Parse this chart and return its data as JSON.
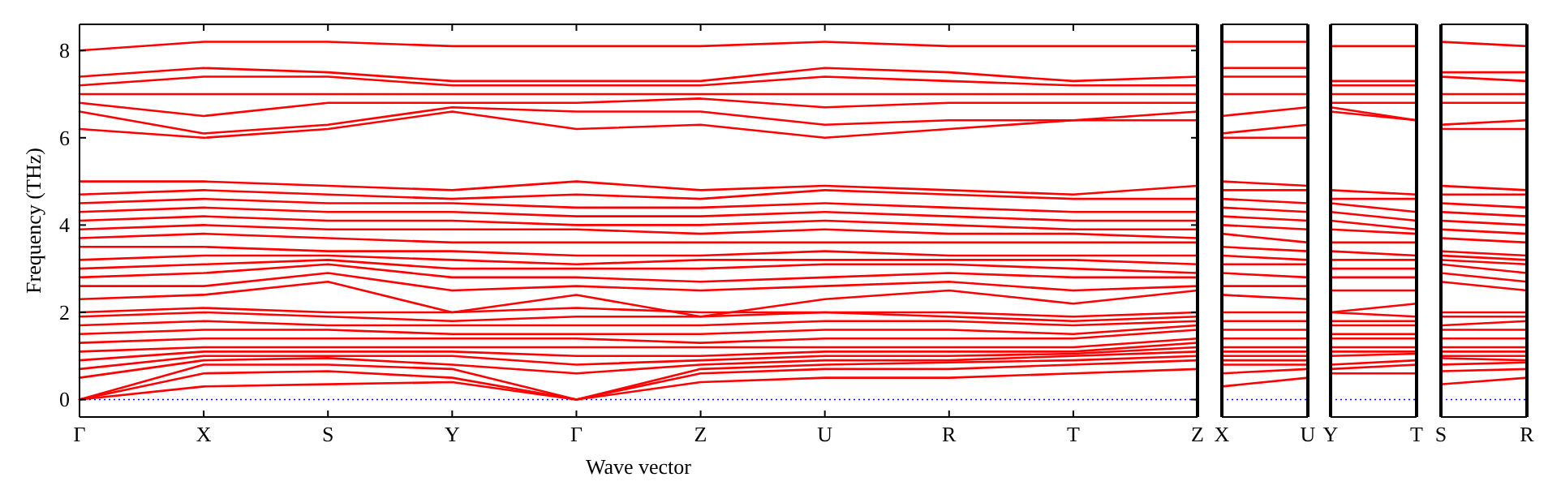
{
  "chart_data": [
    {
      "type": "line",
      "xlabel": "Wave vector",
      "ylabel": "Frequency (THz)",
      "categories": [
        "Γ",
        "X",
        "S",
        "Y",
        "Γ",
        "Z",
        "U",
        "R",
        "T",
        "Z"
      ],
      "ylim": [
        -0.4,
        8.6
      ],
      "yticks": [
        0,
        2,
        4,
        6,
        8
      ],
      "ref_lines": [
        {
          "axis": "y",
          "value": 0,
          "color": "#0000ff",
          "line_style": "dotted"
        }
      ],
      "series": [
        {
          "color": "#ff0000",
          "values": [
            0,
            0.3,
            0.35,
            0.4,
            0,
            0.4,
            0.5,
            0.5,
            0.6,
            0.7
          ]
        },
        {
          "color": "#ff0000",
          "values": [
            0,
            0.6,
            0.65,
            0.5,
            0,
            0.6,
            0.7,
            0.7,
            0.8,
            0.9
          ]
        },
        {
          "color": "#ff0000",
          "values": [
            0,
            0.8,
            0.8,
            0.7,
            0,
            0.7,
            0.8,
            0.85,
            0.9,
            1.0
          ]
        },
        {
          "color": "#ff0000",
          "values": [
            0.5,
            0.9,
            0.95,
            0.8,
            0.6,
            0.8,
            0.9,
            0.9,
            1.0,
            1.1
          ]
        },
        {
          "color": "#ff0000",
          "values": [
            0.7,
            1.0,
            1.0,
            1.0,
            0.8,
            0.9,
            1.0,
            1.0,
            1.05,
            1.2
          ]
        },
        {
          "color": "#ff0000",
          "values": [
            0.9,
            1.1,
            1.1,
            1.1,
            1.0,
            1.0,
            1.1,
            1.1,
            1.1,
            1.3
          ]
        },
        {
          "color": "#ff0000",
          "values": [
            1.1,
            1.2,
            1.2,
            1.2,
            1.2,
            1.2,
            1.2,
            1.2,
            1.2,
            1.4
          ]
        },
        {
          "color": "#ff0000",
          "values": [
            1.3,
            1.4,
            1.4,
            1.4,
            1.4,
            1.3,
            1.4,
            1.4,
            1.4,
            1.6
          ]
        },
        {
          "color": "#ff0000",
          "values": [
            1.5,
            1.6,
            1.6,
            1.5,
            1.5,
            1.5,
            1.6,
            1.6,
            1.5,
            1.7
          ]
        },
        {
          "color": "#ff0000",
          "values": [
            1.7,
            1.8,
            1.7,
            1.7,
            1.7,
            1.7,
            1.8,
            1.8,
            1.7,
            1.8
          ]
        },
        {
          "color": "#ff0000",
          "values": [
            1.9,
            2.0,
            1.9,
            1.8,
            1.9,
            1.9,
            2.0,
            1.9,
            1.8,
            1.9
          ]
        },
        {
          "color": "#ff0000",
          "values": [
            2.0,
            2.1,
            2.0,
            2.0,
            2.1,
            2.0,
            2.0,
            2.0,
            1.9,
            2.0
          ]
        },
        {
          "color": "#ff0000",
          "values": [
            2.3,
            2.4,
            2.7,
            2.0,
            2.4,
            1.9,
            2.3,
            2.5,
            2.2,
            2.5
          ]
        },
        {
          "color": "#ff0000",
          "values": [
            2.6,
            2.6,
            2.9,
            2.5,
            2.6,
            2.5,
            2.6,
            2.7,
            2.5,
            2.6
          ]
        },
        {
          "color": "#ff0000",
          "values": [
            2.8,
            2.9,
            3.1,
            2.8,
            2.8,
            2.7,
            2.8,
            2.9,
            2.8,
            2.8
          ]
        },
        {
          "color": "#ff0000",
          "values": [
            3.0,
            3.1,
            3.2,
            3.0,
            3.0,
            3.0,
            3.1,
            3.1,
            3.0,
            2.9
          ]
        },
        {
          "color": "#ff0000",
          "values": [
            3.2,
            3.3,
            3.3,
            3.2,
            3.1,
            3.2,
            3.2,
            3.2,
            3.2,
            3.1
          ]
        },
        {
          "color": "#ff0000",
          "values": [
            3.5,
            3.5,
            3.4,
            3.4,
            3.3,
            3.3,
            3.4,
            3.3,
            3.3,
            3.3
          ]
        },
        {
          "color": "#ff0000",
          "values": [
            3.7,
            3.8,
            3.7,
            3.6,
            3.6,
            3.6,
            3.6,
            3.6,
            3.6,
            3.6
          ]
        },
        {
          "color": "#ff0000",
          "values": [
            3.9,
            4.0,
            3.9,
            3.9,
            3.9,
            3.8,
            3.9,
            3.8,
            3.8,
            3.7
          ]
        },
        {
          "color": "#ff0000",
          "values": [
            4.1,
            4.2,
            4.1,
            4.1,
            4.0,
            4.0,
            4.1,
            4.0,
            3.9,
            3.9
          ]
        },
        {
          "color": "#ff0000",
          "values": [
            4.3,
            4.4,
            4.3,
            4.3,
            4.2,
            4.2,
            4.3,
            4.2,
            4.1,
            4.1
          ]
        },
        {
          "color": "#ff0000",
          "values": [
            4.5,
            4.6,
            4.5,
            4.5,
            4.4,
            4.4,
            4.5,
            4.4,
            4.3,
            4.3
          ]
        },
        {
          "color": "#ff0000",
          "values": [
            4.7,
            4.8,
            4.7,
            4.6,
            4.7,
            4.6,
            4.8,
            4.7,
            4.6,
            4.6
          ]
        },
        {
          "color": "#ff0000",
          "values": [
            5.0,
            5.0,
            4.9,
            4.8,
            5.0,
            4.8,
            4.9,
            4.8,
            4.7,
            4.9
          ]
        },
        {
          "color": "#ff0000",
          "values": [
            6.2,
            6.0,
            6.2,
            6.6,
            6.2,
            6.3,
            6.0,
            6.2,
            6.4,
            6.4
          ]
        },
        {
          "color": "#ff0000",
          "values": [
            6.6,
            6.1,
            6.3,
            6.7,
            6.6,
            6.6,
            6.3,
            6.4,
            6.4,
            6.6
          ]
        },
        {
          "color": "#ff0000",
          "values": [
            6.8,
            6.5,
            6.8,
            6.8,
            6.8,
            6.9,
            6.7,
            6.8,
            6.8,
            6.8
          ]
        },
        {
          "color": "#ff0000",
          "values": [
            7.0,
            7.0,
            7.0,
            7.0,
            7.0,
            7.0,
            7.0,
            7.0,
            7.0,
            7.0
          ]
        },
        {
          "color": "#ff0000",
          "values": [
            7.2,
            7.4,
            7.4,
            7.2,
            7.2,
            7.2,
            7.4,
            7.3,
            7.2,
            7.2
          ]
        },
        {
          "color": "#ff0000",
          "values": [
            7.4,
            7.6,
            7.5,
            7.3,
            7.3,
            7.3,
            7.6,
            7.5,
            7.3,
            7.4
          ]
        },
        {
          "color": "#ff0000",
          "values": [
            8.0,
            8.2,
            8.2,
            8.1,
            8.1,
            8.1,
            8.2,
            8.1,
            8.1,
            8.1
          ]
        }
      ]
    },
    {
      "type": "line",
      "categories": [
        "X",
        "U"
      ],
      "ylim": [
        -0.4,
        8.6
      ],
      "tick_labels": "x",
      "ref_lines": [
        {
          "axis": "y",
          "value": 0,
          "color": "#0000ff",
          "line_style": "dotted"
        }
      ],
      "series": [
        {
          "color": "#ff0000",
          "values": [
            0.3,
            0.5
          ]
        },
        {
          "color": "#ff0000",
          "values": [
            0.6,
            0.7
          ]
        },
        {
          "color": "#ff0000",
          "values": [
            0.8,
            0.8
          ]
        },
        {
          "color": "#ff0000",
          "values": [
            0.9,
            0.9
          ]
        },
        {
          "color": "#ff0000",
          "values": [
            1.0,
            1.0
          ]
        },
        {
          "color": "#ff0000",
          "values": [
            1.1,
            1.1
          ]
        },
        {
          "color": "#ff0000",
          "values": [
            1.2,
            1.2
          ]
        },
        {
          "color": "#ff0000",
          "values": [
            1.4,
            1.4
          ]
        },
        {
          "color": "#ff0000",
          "values": [
            1.6,
            1.6
          ]
        },
        {
          "color": "#ff0000",
          "values": [
            1.8,
            1.8
          ]
        },
        {
          "color": "#ff0000",
          "values": [
            2.0,
            2.0
          ]
        },
        {
          "color": "#ff0000",
          "values": [
            2.4,
            2.3
          ]
        },
        {
          "color": "#ff0000",
          "values": [
            2.6,
            2.6
          ]
        },
        {
          "color": "#ff0000",
          "values": [
            2.9,
            2.8
          ]
        },
        {
          "color": "#ff0000",
          "values": [
            3.1,
            3.1
          ]
        },
        {
          "color": "#ff0000",
          "values": [
            3.3,
            3.2
          ]
        },
        {
          "color": "#ff0000",
          "values": [
            3.5,
            3.4
          ]
        },
        {
          "color": "#ff0000",
          "values": [
            3.8,
            3.6
          ]
        },
        {
          "color": "#ff0000",
          "values": [
            4.0,
            3.9
          ]
        },
        {
          "color": "#ff0000",
          "values": [
            4.2,
            4.1
          ]
        },
        {
          "color": "#ff0000",
          "values": [
            4.4,
            4.3
          ]
        },
        {
          "color": "#ff0000",
          "values": [
            4.6,
            4.5
          ]
        },
        {
          "color": "#ff0000",
          "values": [
            4.8,
            4.8
          ]
        },
        {
          "color": "#ff0000",
          "values": [
            5.0,
            4.9
          ]
        },
        {
          "color": "#ff0000",
          "values": [
            6.0,
            6.0
          ]
        },
        {
          "color": "#ff0000",
          "values": [
            6.1,
            6.3
          ]
        },
        {
          "color": "#ff0000",
          "values": [
            6.5,
            6.7
          ]
        },
        {
          "color": "#ff0000",
          "values": [
            7.0,
            7.0
          ]
        },
        {
          "color": "#ff0000",
          "values": [
            7.4,
            7.4
          ]
        },
        {
          "color": "#ff0000",
          "values": [
            7.6,
            7.6
          ]
        },
        {
          "color": "#ff0000",
          "values": [
            8.2,
            8.2
          ]
        }
      ]
    },
    {
      "type": "line",
      "categories": [
        "Y",
        "T"
      ],
      "ylim": [
        -0.4,
        8.6
      ],
      "tick_labels": "x",
      "ref_lines": [
        {
          "axis": "y",
          "value": 0,
          "color": "#0000ff",
          "line_style": "dotted"
        }
      ],
      "series": [
        {
          "color": "#ff0000",
          "values": [
            0.6,
            0.6
          ]
        },
        {
          "color": "#ff0000",
          "values": [
            0.7,
            0.8
          ]
        },
        {
          "color": "#ff0000",
          "values": [
            0.8,
            0.9
          ]
        },
        {
          "color": "#ff0000",
          "values": [
            1.0,
            1.05
          ]
        },
        {
          "color": "#ff0000",
          "values": [
            1.1,
            1.1
          ]
        },
        {
          "color": "#ff0000",
          "values": [
            1.2,
            1.2
          ]
        },
        {
          "color": "#ff0000",
          "values": [
            1.4,
            1.4
          ]
        },
        {
          "color": "#ff0000",
          "values": [
            1.5,
            1.5
          ]
        },
        {
          "color": "#ff0000",
          "values": [
            1.7,
            1.7
          ]
        },
        {
          "color": "#ff0000",
          "values": [
            1.8,
            1.8
          ]
        },
        {
          "color": "#ff0000",
          "values": [
            2.0,
            1.9
          ]
        },
        {
          "color": "#ff0000",
          "values": [
            2.0,
            2.2
          ]
        },
        {
          "color": "#ff0000",
          "values": [
            2.5,
            2.5
          ]
        },
        {
          "color": "#ff0000",
          "values": [
            2.8,
            2.8
          ]
        },
        {
          "color": "#ff0000",
          "values": [
            3.0,
            3.0
          ]
        },
        {
          "color": "#ff0000",
          "values": [
            3.2,
            3.2
          ]
        },
        {
          "color": "#ff0000",
          "values": [
            3.4,
            3.3
          ]
        },
        {
          "color": "#ff0000",
          "values": [
            3.6,
            3.6
          ]
        },
        {
          "color": "#ff0000",
          "values": [
            3.9,
            3.8
          ]
        },
        {
          "color": "#ff0000",
          "values": [
            4.1,
            3.9
          ]
        },
        {
          "color": "#ff0000",
          "values": [
            4.3,
            4.1
          ]
        },
        {
          "color": "#ff0000",
          "values": [
            4.5,
            4.3
          ]
        },
        {
          "color": "#ff0000",
          "values": [
            4.6,
            4.6
          ]
        },
        {
          "color": "#ff0000",
          "values": [
            4.8,
            4.7
          ]
        },
        {
          "color": "#ff0000",
          "values": [
            6.6,
            6.4
          ]
        },
        {
          "color": "#ff0000",
          "values": [
            6.7,
            6.4
          ]
        },
        {
          "color": "#ff0000",
          "values": [
            6.8,
            6.8
          ]
        },
        {
          "color": "#ff0000",
          "values": [
            7.0,
            7.0
          ]
        },
        {
          "color": "#ff0000",
          "values": [
            7.2,
            7.2
          ]
        },
        {
          "color": "#ff0000",
          "values": [
            7.3,
            7.3
          ]
        },
        {
          "color": "#ff0000",
          "values": [
            8.1,
            8.1
          ]
        }
      ]
    },
    {
      "type": "line",
      "categories": [
        "S",
        "R"
      ],
      "ylim": [
        -0.4,
        8.6
      ],
      "tick_labels": "x",
      "ref_lines": [
        {
          "axis": "y",
          "value": 0,
          "color": "#0000ff",
          "line_style": "dotted"
        }
      ],
      "series": [
        {
          "color": "#ff0000",
          "values": [
            0.35,
            0.5
          ]
        },
        {
          "color": "#ff0000",
          "values": [
            0.65,
            0.7
          ]
        },
        {
          "color": "#ff0000",
          "values": [
            0.8,
            0.85
          ]
        },
        {
          "color": "#ff0000",
          "values": [
            0.95,
            0.9
          ]
        },
        {
          "color": "#ff0000",
          "values": [
            1.0,
            1.0
          ]
        },
        {
          "color": "#ff0000",
          "values": [
            1.1,
            1.1
          ]
        },
        {
          "color": "#ff0000",
          "values": [
            1.2,
            1.2
          ]
        },
        {
          "color": "#ff0000",
          "values": [
            1.4,
            1.4
          ]
        },
        {
          "color": "#ff0000",
          "values": [
            1.6,
            1.6
          ]
        },
        {
          "color": "#ff0000",
          "values": [
            1.7,
            1.8
          ]
        },
        {
          "color": "#ff0000",
          "values": [
            1.9,
            1.9
          ]
        },
        {
          "color": "#ff0000",
          "values": [
            2.0,
            2.0
          ]
        },
        {
          "color": "#ff0000",
          "values": [
            2.7,
            2.5
          ]
        },
        {
          "color": "#ff0000",
          "values": [
            2.9,
            2.7
          ]
        },
        {
          "color": "#ff0000",
          "values": [
            3.1,
            2.9
          ]
        },
        {
          "color": "#ff0000",
          "values": [
            3.2,
            3.1
          ]
        },
        {
          "color": "#ff0000",
          "values": [
            3.3,
            3.2
          ]
        },
        {
          "color": "#ff0000",
          "values": [
            3.4,
            3.3
          ]
        },
        {
          "color": "#ff0000",
          "values": [
            3.7,
            3.6
          ]
        },
        {
          "color": "#ff0000",
          "values": [
            3.9,
            3.8
          ]
        },
        {
          "color": "#ff0000",
          "values": [
            4.1,
            4.0
          ]
        },
        {
          "color": "#ff0000",
          "values": [
            4.3,
            4.2
          ]
        },
        {
          "color": "#ff0000",
          "values": [
            4.5,
            4.4
          ]
        },
        {
          "color": "#ff0000",
          "values": [
            4.7,
            4.7
          ]
        },
        {
          "color": "#ff0000",
          "values": [
            4.9,
            4.8
          ]
        },
        {
          "color": "#ff0000",
          "values": [
            6.2,
            6.2
          ]
        },
        {
          "color": "#ff0000",
          "values": [
            6.3,
            6.4
          ]
        },
        {
          "color": "#ff0000",
          "values": [
            6.8,
            6.8
          ]
        },
        {
          "color": "#ff0000",
          "values": [
            7.0,
            7.0
          ]
        },
        {
          "color": "#ff0000",
          "values": [
            7.4,
            7.3
          ]
        },
        {
          "color": "#ff0000",
          "values": [
            7.5,
            7.5
          ]
        },
        {
          "color": "#ff0000",
          "values": [
            8.2,
            8.1
          ]
        }
      ]
    }
  ]
}
